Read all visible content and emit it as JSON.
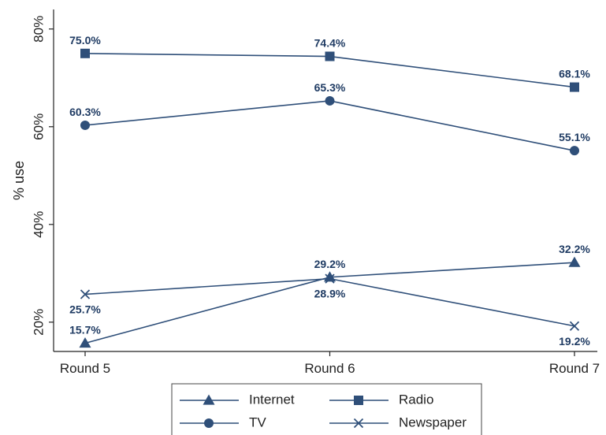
{
  "chart_data": {
    "type": "line",
    "title": "",
    "xlabel": "",
    "ylabel": "% use",
    "categories": [
      "Round 5",
      "Round 6",
      "Round 7"
    ],
    "ylim": [
      14,
      84
    ],
    "yticks": [
      20,
      40,
      60,
      80
    ],
    "ytick_labels": [
      "20%",
      "40%",
      "60%",
      "80%"
    ],
    "grid": false,
    "legend_position": "bottom",
    "line_color": "#2f4f79",
    "series": [
      {
        "name": "Internet",
        "marker": "triangle",
        "values": [
          15.7,
          29.2,
          32.2
        ],
        "labels": [
          "15.7%",
          "29.2%",
          "32.2%"
        ]
      },
      {
        "name": "Radio",
        "marker": "square",
        "values": [
          75.0,
          74.4,
          68.1
        ],
        "labels": [
          "75.0%",
          "74.4%",
          "68.1%"
        ]
      },
      {
        "name": "TV",
        "marker": "circle",
        "values": [
          60.3,
          65.3,
          55.1
        ],
        "labels": [
          "60.3%",
          "65.3%",
          "55.1%"
        ]
      },
      {
        "name": "Newspaper",
        "marker": "x",
        "values": [
          25.7,
          28.9,
          19.2
        ],
        "labels": [
          "25.7%",
          "28.9%",
          "19.2%"
        ]
      }
    ]
  }
}
